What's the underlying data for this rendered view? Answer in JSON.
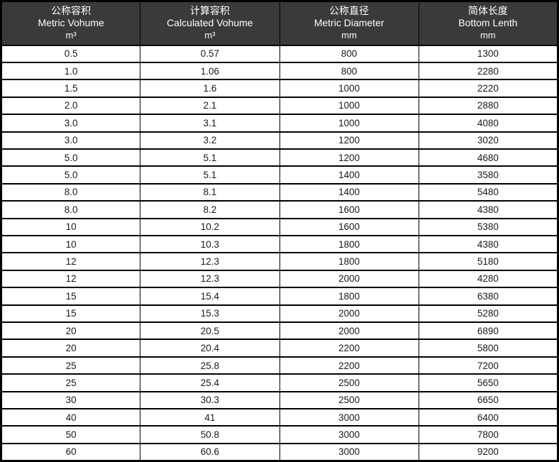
{
  "table": {
    "colors": {
      "header_bg": "#3a3a3a",
      "header_text": "#ffffff",
      "border": "#000000",
      "body_bg": "#ffffff",
      "body_text": "#1a1a1a"
    },
    "columns": [
      {
        "zh": "公称容积",
        "en": "Metric Vohume",
        "unit": "m³"
      },
      {
        "zh": "计算容积",
        "en": "Calculated Vohume",
        "unit": "m³"
      },
      {
        "zh": "公称直径",
        "en": "Metric Diameter",
        "unit": "mm"
      },
      {
        "zh": "简体长度",
        "en": "Bottom Lenth",
        "unit": "mm"
      }
    ],
    "rows": [
      [
        "0.5",
        "0.57",
        "800",
        "1300"
      ],
      [
        "1.0",
        "1.06",
        "800",
        "2280"
      ],
      [
        "1.5",
        "1.6",
        "1000",
        "2220"
      ],
      [
        "2.0",
        "2.1",
        "1000",
        "2880"
      ],
      [
        "3.0",
        "3.1",
        "1000",
        "4080"
      ],
      [
        "3.0",
        "3.2",
        "1200",
        "3020"
      ],
      [
        "5.0",
        "5.1",
        "1200",
        "4680"
      ],
      [
        "5.0",
        "5.1",
        "1400",
        "3580"
      ],
      [
        "8.0",
        "8.1",
        "1400",
        "5480"
      ],
      [
        "8.0",
        "8.2",
        "1600",
        "4380"
      ],
      [
        "10",
        "10.2",
        "1600",
        "5380"
      ],
      [
        "10",
        "10.3",
        "1800",
        "4380"
      ],
      [
        "12",
        "12.3",
        "1800",
        "5180"
      ],
      [
        "12",
        "12.3",
        "2000",
        "4280"
      ],
      [
        "15",
        "15.4",
        "1800",
        "6380"
      ],
      [
        "15",
        "15.3",
        "2000",
        "5280"
      ],
      [
        "20",
        "20.5",
        "2000",
        "6890"
      ],
      [
        "20",
        "20.4",
        "2200",
        "5800"
      ],
      [
        "25",
        "25.8",
        "2200",
        "7200"
      ],
      [
        "25",
        "25.4",
        "2500",
        "5650"
      ],
      [
        "30",
        "30.3",
        "2500",
        "6650"
      ],
      [
        "40",
        "41",
        "3000",
        "6400"
      ],
      [
        "50",
        "50.8",
        "3000",
        "7800"
      ],
      [
        "60",
        "60.6",
        "3000",
        "9200"
      ]
    ]
  }
}
